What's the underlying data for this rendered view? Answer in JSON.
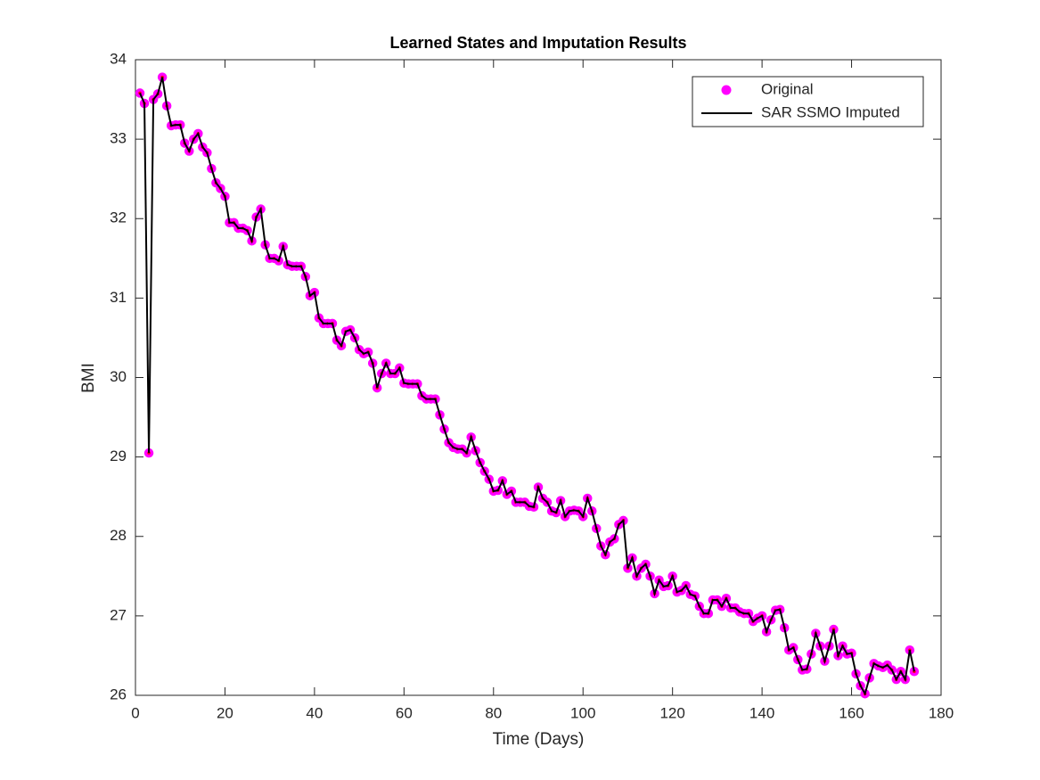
{
  "chart_data": {
    "type": "line",
    "title": "Learned States and Imputation Results",
    "x_label": "Time (Days)",
    "y_label": "BMI",
    "x": [
      1,
      2,
      3,
      4,
      5,
      6,
      7,
      8,
      9,
      10,
      11,
      12,
      13,
      14,
      15,
      16,
      17,
      18,
      19,
      20,
      21,
      22,
      23,
      24,
      25,
      26,
      27,
      28,
      29,
      30,
      31,
      32,
      33,
      34,
      35,
      36,
      37,
      38,
      39,
      40,
      41,
      42,
      43,
      44,
      45,
      46,
      47,
      48,
      49,
      50,
      51,
      52,
      53,
      54,
      55,
      56,
      57,
      58,
      59,
      60,
      61,
      62,
      63,
      64,
      65,
      66,
      67,
      68,
      69,
      70,
      71,
      72,
      73,
      74,
      75,
      76,
      77,
      78,
      79,
      80,
      81,
      82,
      83,
      84,
      85,
      86,
      87,
      88,
      89,
      90,
      91,
      92,
      93,
      94,
      95,
      96,
      97,
      98,
      99,
      100,
      101,
      102,
      103,
      104,
      105,
      106,
      107,
      108,
      109,
      110,
      111,
      112,
      113,
      114,
      115,
      116,
      117,
      118,
      119,
      120,
      121,
      122,
      123,
      124,
      125,
      126,
      127,
      128,
      129,
      130,
      131,
      132,
      133,
      134,
      135,
      136,
      137,
      138,
      139,
      140,
      141,
      142,
      143,
      144,
      145,
      146,
      147,
      148,
      149,
      150,
      151,
      152,
      153,
      154,
      155,
      156,
      157,
      158,
      159,
      160,
      161,
      162,
      163,
      164,
      165,
      166,
      167,
      168,
      169,
      170,
      171,
      172,
      173,
      174
    ],
    "series": [
      {
        "name": "Original",
        "color": "#ff00ff",
        "marker": "o",
        "linestyle": "none",
        "values": [
          33.58,
          33.45,
          29.05,
          33.5,
          33.57,
          33.78,
          33.42,
          33.17,
          33.18,
          33.18,
          32.95,
          32.85,
          33.0,
          33.07,
          32.9,
          32.83,
          32.63,
          32.45,
          32.38,
          32.28,
          31.95,
          31.95,
          31.88,
          31.88,
          31.85,
          31.72,
          32.02,
          32.12,
          31.67,
          31.5,
          31.5,
          31.47,
          31.65,
          31.42,
          31.4,
          31.4,
          31.4,
          31.27,
          31.03,
          31.07,
          30.75,
          30.68,
          30.68,
          30.68,
          30.47,
          30.4,
          30.58,
          30.6,
          30.5,
          30.35,
          30.3,
          30.32,
          30.18,
          29.87,
          30.05,
          30.18,
          30.05,
          30.05,
          30.12,
          29.93,
          29.92,
          29.92,
          29.92,
          29.77,
          29.73,
          29.73,
          29.73,
          29.53,
          29.35,
          29.18,
          29.12,
          29.1,
          29.1,
          29.05,
          29.25,
          29.08,
          28.93,
          28.82,
          28.72,
          28.57,
          28.58,
          28.7,
          28.53,
          28.57,
          28.43,
          28.43,
          28.43,
          28.38,
          28.37,
          28.62,
          28.48,
          28.43,
          28.32,
          28.3,
          28.45,
          28.25,
          28.32,
          28.33,
          28.32,
          28.25,
          28.48,
          28.32,
          28.1,
          27.88,
          27.77,
          27.93,
          27.97,
          28.15,
          28.2,
          27.6,
          27.73,
          27.5,
          27.6,
          27.65,
          27.5,
          27.28,
          27.45,
          27.37,
          27.38,
          27.5,
          27.3,
          27.32,
          27.38,
          27.27,
          27.25,
          27.12,
          27.03,
          27.03,
          27.2,
          27.2,
          27.12,
          27.22,
          27.1,
          27.1,
          27.05,
          27.03,
          27.03,
          26.93,
          26.97,
          27.0,
          26.8,
          26.95,
          27.07,
          27.08,
          26.85,
          26.57,
          26.6,
          26.45,
          26.32,
          26.33,
          26.52,
          26.78,
          26.62,
          26.43,
          26.62,
          26.83,
          26.5,
          26.62,
          26.52,
          26.53,
          26.27,
          26.12,
          26.02,
          26.22,
          26.4,
          26.37,
          26.35,
          26.38,
          26.32,
          26.2,
          26.3,
          26.2,
          26.57,
          26.3
        ]
      },
      {
        "name": "SAR SSMO Imputed",
        "color": "#000000",
        "marker": "none",
        "linestyle": "-",
        "values": [
          33.58,
          33.45,
          29.05,
          33.5,
          33.57,
          33.78,
          33.42,
          33.17,
          33.18,
          33.18,
          32.95,
          32.85,
          33.0,
          33.07,
          32.9,
          32.83,
          32.63,
          32.45,
          32.38,
          32.28,
          31.95,
          31.95,
          31.88,
          31.88,
          31.85,
          31.72,
          32.02,
          32.12,
          31.67,
          31.5,
          31.5,
          31.47,
          31.65,
          31.42,
          31.4,
          31.4,
          31.4,
          31.27,
          31.03,
          31.07,
          30.75,
          30.68,
          30.68,
          30.68,
          30.47,
          30.4,
          30.58,
          30.6,
          30.5,
          30.35,
          30.3,
          30.32,
          30.18,
          29.87,
          30.05,
          30.18,
          30.05,
          30.05,
          30.12,
          29.93,
          29.92,
          29.92,
          29.92,
          29.77,
          29.73,
          29.73,
          29.73,
          29.53,
          29.35,
          29.18,
          29.12,
          29.1,
          29.1,
          29.05,
          29.25,
          29.08,
          28.93,
          28.82,
          28.72,
          28.57,
          28.58,
          28.7,
          28.53,
          28.57,
          28.43,
          28.43,
          28.43,
          28.38,
          28.37,
          28.62,
          28.48,
          28.43,
          28.32,
          28.3,
          28.45,
          28.25,
          28.32,
          28.33,
          28.32,
          28.25,
          28.48,
          28.32,
          28.1,
          27.88,
          27.77,
          27.93,
          27.97,
          28.15,
          28.2,
          27.6,
          27.73,
          27.5,
          27.6,
          27.65,
          27.5,
          27.28,
          27.45,
          27.37,
          27.38,
          27.5,
          27.3,
          27.32,
          27.38,
          27.27,
          27.25,
          27.12,
          27.03,
          27.03,
          27.2,
          27.2,
          27.12,
          27.22,
          27.1,
          27.1,
          27.05,
          27.03,
          27.03,
          26.93,
          26.97,
          27.0,
          26.8,
          26.95,
          27.07,
          27.08,
          26.85,
          26.57,
          26.6,
          26.45,
          26.32,
          26.33,
          26.52,
          26.78,
          26.62,
          26.43,
          26.62,
          26.83,
          26.5,
          26.62,
          26.52,
          26.53,
          26.27,
          26.12,
          26.02,
          26.22,
          26.4,
          26.37,
          26.35,
          26.38,
          26.32,
          26.2,
          26.3,
          26.2,
          26.57,
          26.3
        ]
      }
    ],
    "xlim": [
      0,
      180
    ],
    "xticks": [
      0,
      20,
      40,
      60,
      80,
      100,
      120,
      140,
      160,
      180
    ],
    "ylim": [
      26,
      34
    ],
    "yticks": [
      26,
      27,
      28,
      29,
      30,
      31,
      32,
      33,
      34
    ],
    "legend": "upper right"
  }
}
